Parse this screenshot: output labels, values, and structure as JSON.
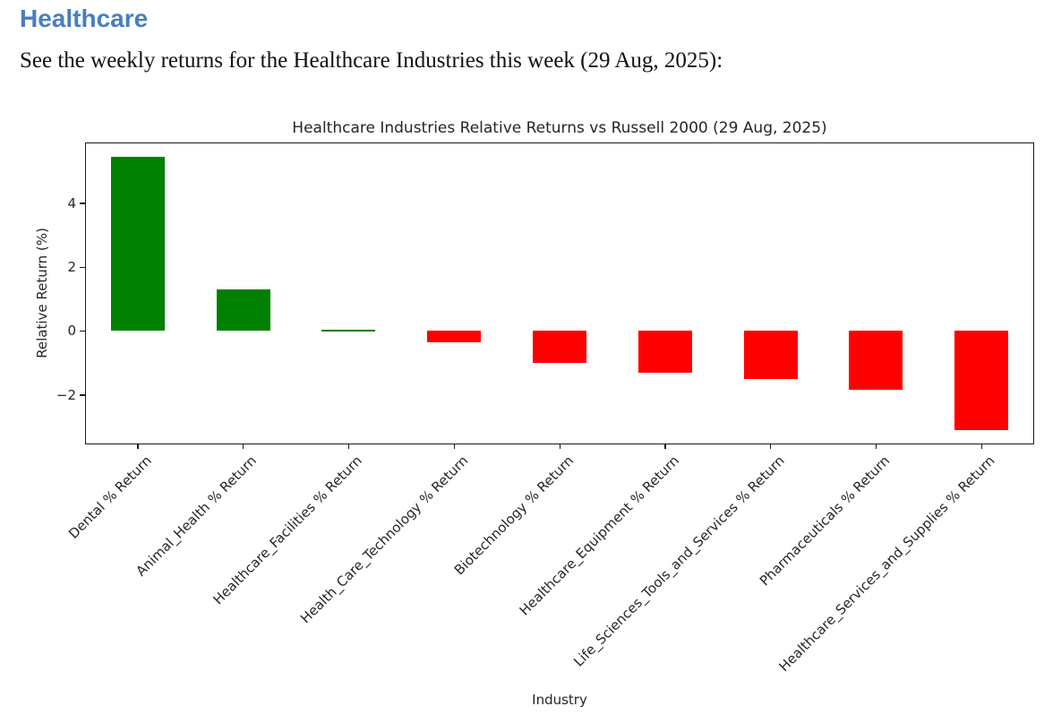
{
  "page": {
    "heading": "Healthcare",
    "intro": "See the weekly returns for the Healthcare Industries this week (29 Aug, 2025):"
  },
  "colors": {
    "heading_blue": "#4a7ebd",
    "positive_green": "#008000",
    "negative_red": "#ff0000",
    "axis_color": "#1a1a1a",
    "text_color": "#262626"
  },
  "chart_data": {
    "type": "bar",
    "title": "Healthcare Industries Relative Returns vs Russell 2000 (29 Aug, 2025)",
    "xlabel": "Industry",
    "ylabel": "Relative Return (%)",
    "categories": [
      "Dental % Return",
      "Animal_Health % Return",
      "Healthcare_Facilities % Return",
      "Health_Care_Technology % Return",
      "Biotechnology % Return",
      "Healthcare_Equipment % Return",
      "Life_Sciences_Tools_and_Services % Return",
      "Pharmaceuticals % Return",
      "Healthcare_Services_and_Supplies % Return"
    ],
    "values": [
      5.45,
      1.3,
      0.05,
      -0.35,
      -1.0,
      -1.3,
      -1.5,
      -1.85,
      -3.1
    ],
    "yticks": [
      -2,
      0,
      2,
      4
    ],
    "ylim": [
      -3.55,
      5.9
    ],
    "grid": false,
    "legend": null,
    "xtick_rotation": 45,
    "bar_color_rule": "positive bars green, negative bars red"
  }
}
